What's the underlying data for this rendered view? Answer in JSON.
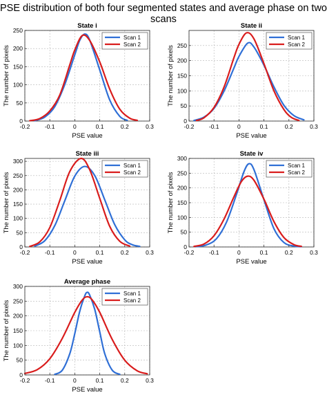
{
  "figure": {
    "title": "PSE distribution of both four segmented states and average phase on two scans"
  },
  "colors": {
    "scan1": "#2f6fd6",
    "scan2": "#d91c1c"
  },
  "chart_data": [
    {
      "type": "line",
      "title": "State i",
      "xlabel": "PSE value",
      "ylabel": "The number of pixels",
      "xlim": [
        -0.2,
        0.3
      ],
      "ylim": [
        0,
        250
      ],
      "xticks": [
        "-0.2",
        "-0.1",
        "0",
        "0.1",
        "0.2",
        "0.3"
      ],
      "yticks": [
        "0",
        "50",
        "100",
        "150",
        "200",
        "250"
      ],
      "grid": "dashed vertical and horizontal lines",
      "legend": "top-right",
      "series": [
        {
          "name": "Scan 1",
          "color": "#2f6fd6",
          "x": [
            -0.16,
            -0.12,
            -0.08,
            -0.04,
            0.0,
            0.02,
            0.04,
            0.06,
            0.1,
            0.14,
            0.18,
            0.21
          ],
          "y": [
            1,
            11,
            40,
            101,
            183,
            223,
            240,
            223,
            141,
            58,
            13,
            2
          ]
        },
        {
          "name": "Scan 2",
          "color": "#d91c1c",
          "x": [
            -0.18,
            -0.14,
            -0.1,
            -0.06,
            -0.02,
            0.0,
            0.03,
            0.06,
            0.1,
            0.14,
            0.18,
            0.22,
            0.25
          ],
          "y": [
            1,
            7,
            28,
            72,
            155,
            196,
            236,
            222,
            163,
            88,
            33,
            8,
            2
          ]
        }
      ]
    },
    {
      "type": "line",
      "title": "State ii",
      "xlabel": "PSE value",
      "ylabel": "The number of pixels",
      "xlim": [
        -0.2,
        0.3
      ],
      "ylim": [
        0,
        300
      ],
      "xticks": [
        "-0.2",
        "-0.1",
        "0",
        "0.1",
        "0.2",
        "0.3"
      ],
      "yticks": [
        "0",
        "50",
        "100",
        "150",
        "200",
        "250"
      ],
      "grid": "dashed vertical and horizontal lines",
      "legend": "top-right",
      "series": [
        {
          "name": "Scan 1",
          "color": "#2f6fd6",
          "x": [
            -0.18,
            -0.14,
            -0.1,
            -0.06,
            -0.02,
            0.0,
            0.035,
            0.06,
            0.1,
            0.14,
            0.18,
            0.22,
            0.26
          ],
          "y": [
            2,
            13,
            42,
            99,
            176,
            214,
            258,
            245,
            185,
            113,
            52,
            18,
            4
          ]
        },
        {
          "name": "Scan 2",
          "color": "#d91c1c",
          "x": [
            -0.17,
            -0.14,
            -0.1,
            -0.06,
            -0.02,
            0.0,
            0.03,
            0.06,
            0.1,
            0.14,
            0.18,
            0.21,
            0.24
          ],
          "y": [
            2,
            11,
            45,
            112,
            210,
            254,
            292,
            272,
            190,
            100,
            38,
            12,
            2
          ]
        }
      ]
    },
    {
      "type": "line",
      "title": "State iii",
      "xlabel": "PSE value",
      "ylabel": "The number of pixels",
      "xlim": [
        -0.2,
        0.3
      ],
      "ylim": [
        0,
        310
      ],
      "xticks": [
        "-0.2",
        "-0.1",
        "0",
        "0.1",
        "0.2",
        "0.3"
      ],
      "yticks": [
        "0",
        "50",
        "100",
        "150",
        "200",
        "250",
        "300"
      ],
      "grid": "dashed vertical and horizontal lines",
      "legend": "top-right",
      "series": [
        {
          "name": "Scan 1",
          "color": "#2f6fd6",
          "x": [
            -0.16,
            -0.12,
            -0.08,
            -0.04,
            0.0,
            0.04,
            0.08,
            0.12,
            0.16,
            0.2,
            0.23,
            0.26
          ],
          "y": [
            3,
            22,
            75,
            162,
            248,
            282,
            250,
            165,
            78,
            25,
            8,
            2
          ]
        },
        {
          "name": "Scan 2",
          "color": "#d91c1c",
          "x": [
            -0.18,
            -0.14,
            -0.1,
            -0.06,
            -0.02,
            0.025,
            0.06,
            0.1,
            0.14,
            0.18,
            0.22
          ],
          "y": [
            2,
            18,
            68,
            163,
            264,
            310,
            270,
            170,
            72,
            20,
            3
          ]
        }
      ]
    },
    {
      "type": "line",
      "title": "State iv",
      "xlabel": "PSE value",
      "ylabel": "The number of pixels",
      "xlim": [
        -0.2,
        0.3
      ],
      "ylim": [
        0,
        300
      ],
      "xticks": [
        "-0.2",
        "-0.1",
        "0",
        "0.1",
        "0.2",
        "0.3"
      ],
      "yticks": [
        "0",
        "50",
        "100",
        "150",
        "200",
        "250",
        "300"
      ],
      "grid": "dashed vertical and horizontal lines",
      "legend": "top-right",
      "series": [
        {
          "name": "Scan 1",
          "color": "#2f6fd6",
          "x": [
            -0.17,
            -0.13,
            -0.09,
            -0.05,
            -0.01,
            0.02,
            0.04,
            0.06,
            0.1,
            0.14,
            0.18,
            0.22,
            0.25
          ],
          "y": [
            1,
            7,
            28,
            84,
            178,
            255,
            282,
            262,
            160,
            62,
            15,
            3,
            1
          ]
        },
        {
          "name": "Scan 2",
          "color": "#d91c1c",
          "x": [
            -0.18,
            -0.14,
            -0.1,
            -0.06,
            -0.02,
            0.01,
            0.035,
            0.06,
            0.1,
            0.14,
            0.18,
            0.22,
            0.25
          ],
          "y": [
            2,
            10,
            38,
            94,
            170,
            222,
            240,
            226,
            162,
            86,
            32,
            8,
            2
          ]
        }
      ]
    },
    {
      "type": "line",
      "title": "Average phase",
      "xlabel": "PSE value",
      "ylabel": "The number of pixels",
      "xlim": [
        -0.2,
        0.3
      ],
      "ylim": [
        0,
        300
      ],
      "xticks": [
        "-0.2",
        "-0.1",
        "0",
        "0.1",
        "0.2",
        "0.3"
      ],
      "yticks": [
        "0",
        "50",
        "100",
        "150",
        "200",
        "250",
        "300"
      ],
      "grid": "dashed vertical and horizontal lines",
      "legend": "top-right",
      "series": [
        {
          "name": "Scan 1",
          "color": "#2f6fd6",
          "x": [
            -0.08,
            -0.05,
            -0.02,
            0.0,
            0.02,
            0.04,
            0.05,
            0.06,
            0.08,
            0.1,
            0.12,
            0.15,
            0.18
          ],
          "y": [
            2,
            16,
            72,
            140,
            216,
            268,
            280,
            270,
            222,
            146,
            72,
            16,
            2
          ]
        },
        {
          "name": "Scan 2",
          "color": "#d91c1c",
          "x": [
            -0.2,
            -0.15,
            -0.1,
            -0.05,
            0.0,
            0.03,
            0.05,
            0.07,
            0.1,
            0.15,
            0.2,
            0.25,
            0.29
          ],
          "y": [
            5,
            18,
            55,
            124,
            212,
            254,
            265,
            254,
            212,
            120,
            50,
            14,
            4
          ]
        }
      ]
    }
  ]
}
